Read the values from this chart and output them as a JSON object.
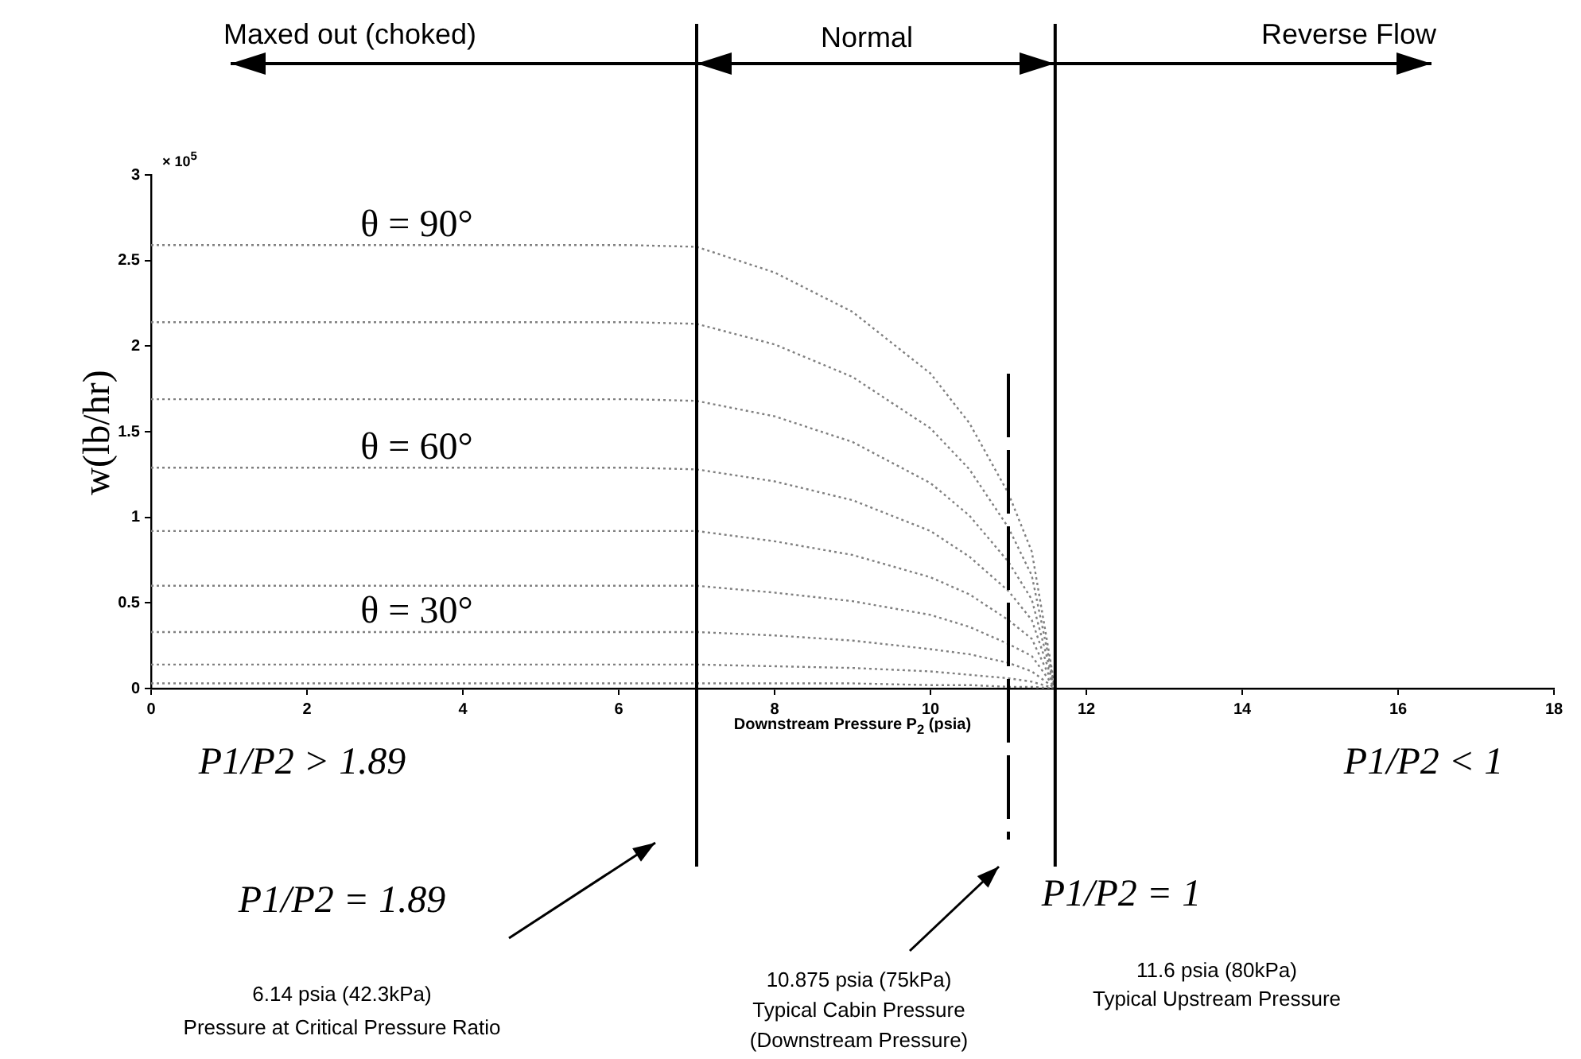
{
  "chart_data": {
    "type": "line",
    "xlabel": "Downstream Pressure P$_{2}$ (psia)",
    "ylabel": "w(lb/hr)",
    "x": [
      0,
      6.14,
      7,
      8,
      9,
      10,
      10.5,
      11,
      11.3,
      11.6
    ],
    "series": [
      {
        "color": "#808080",
        "values": [
          2.59,
          2.59,
          2.58,
          2.43,
          2.2,
          1.84,
          1.55,
          1.14,
          0.8,
          0
        ]
      },
      {
        "color": "#808080",
        "values": [
          2.14,
          2.14,
          2.13,
          2.01,
          1.82,
          1.52,
          1.28,
          0.94,
          0.66,
          0
        ]
      },
      {
        "color": "#808080",
        "values": [
          1.69,
          1.69,
          1.68,
          1.59,
          1.44,
          1.2,
          1.01,
          0.74,
          0.52,
          0
        ]
      },
      {
        "color": "#808080",
        "values": [
          1.29,
          1.29,
          1.28,
          1.21,
          1.1,
          0.92,
          0.77,
          0.57,
          0.4,
          0
        ]
      },
      {
        "color": "#808080",
        "values": [
          0.92,
          0.92,
          0.92,
          0.86,
          0.78,
          0.65,
          0.55,
          0.4,
          0.29,
          0
        ]
      },
      {
        "color": "#808080",
        "values": [
          0.6,
          0.6,
          0.6,
          0.56,
          0.51,
          0.43,
          0.36,
          0.26,
          0.19,
          0
        ]
      },
      {
        "color": "#808080",
        "values": [
          0.33,
          0.33,
          0.33,
          0.31,
          0.28,
          0.23,
          0.2,
          0.15,
          0.1,
          0
        ]
      },
      {
        "color": "#808080",
        "values": [
          0.14,
          0.14,
          0.14,
          0.13,
          0.12,
          0.1,
          0.08,
          0.06,
          0.04,
          0
        ]
      },
      {
        "color": "#808080",
        "values": [
          0.03,
          0.03,
          0.03,
          0.03,
          0.03,
          0.02,
          0.02,
          0.01,
          0.01,
          0
        ]
      }
    ],
    "xlim": [
      0,
      18
    ],
    "xticks": [
      0,
      2,
      4,
      6,
      8,
      10,
      12,
      14,
      16,
      18
    ],
    "ylim": [
      0,
      3
    ],
    "yticks": [
      0,
      0.5,
      1,
      1.5,
      2,
      2.5,
      3
    ],
    "grid": false,
    "legend": false,
    "marker": "none",
    "line_style": "dotted",
    "ref_lines": [
      {
        "axis": "x",
        "value": 7,
        "color": "#000000"
      },
      {
        "axis": "x",
        "value": 11,
        "color": "#000000",
        "line_style": "dashed"
      },
      {
        "axis": "x",
        "value": 11.6,
        "color": "#000000"
      }
    ],
    "annotations": [
      "Maxed out (choked)",
      "Normal",
      "Reverse Flow",
      "× 10$^{5}$",
      "θ = 90°",
      "θ = 60°",
      "θ = 30°",
      "P1/P2 > 1.89",
      "P1/P2 = 1.89",
      "6.14 psia (42.3kPa)",
      "Pressure at Critical Pressure Ratio",
      "10.875 psia (75kPa)",
      "Typical Cabin Pressure",
      "(Downstream Pressure)",
      "P1/P2 = 1",
      "11.6 psia (80kPa)",
      "Typical Upstream Pressure",
      "P1/P2 < 1"
    ]
  }
}
